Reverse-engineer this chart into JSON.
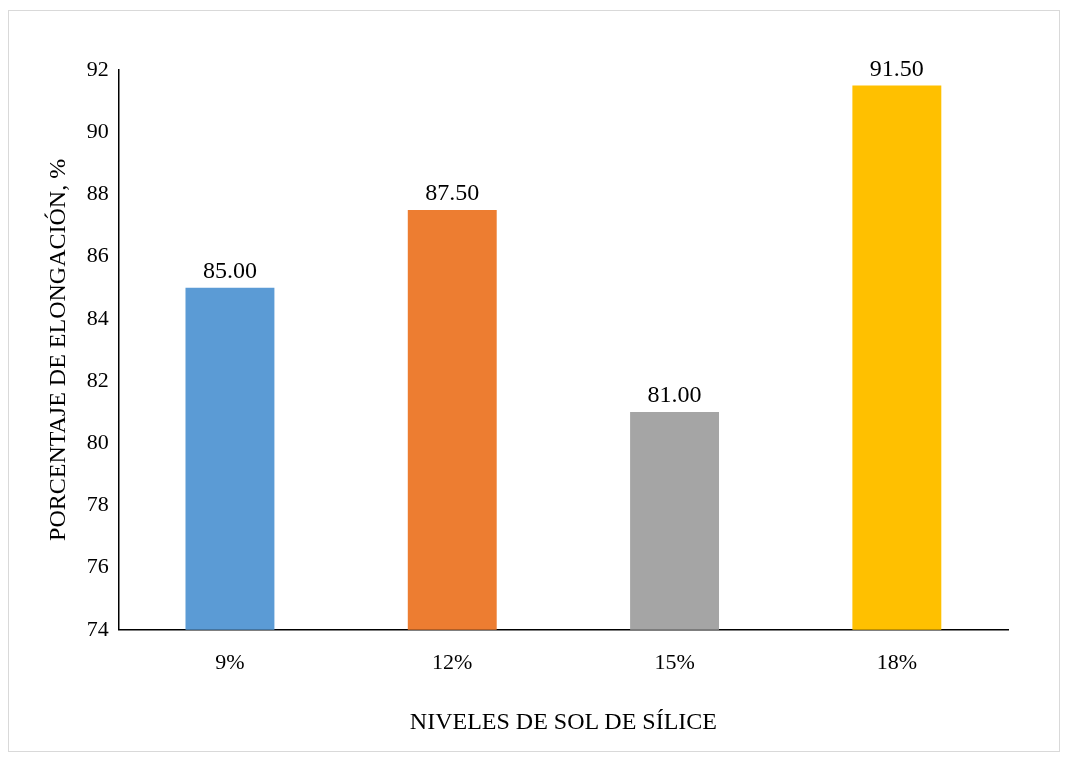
{
  "chart_data": {
    "type": "bar",
    "xlabel": "NIVELES DE SOL DE SÍLICE",
    "ylabel": "PORCENTAJE DE ELONGACIÓN, %",
    "categories": [
      "9%",
      "12%",
      "15%",
      "18%"
    ],
    "values": [
      85,
      87.5,
      81,
      91.5
    ],
    "colors": [
      "#5b9bd5",
      "#ed7d31",
      "#a5a5a5",
      "#ffc000"
    ],
    "value_labels": [
      "85.00",
      "87.50",
      "81.00",
      "91.50"
    ],
    "ylim": [
      74,
      92
    ],
    "yticks": [
      74,
      76,
      78,
      80,
      82,
      84,
      86,
      88,
      90,
      92
    ]
  }
}
